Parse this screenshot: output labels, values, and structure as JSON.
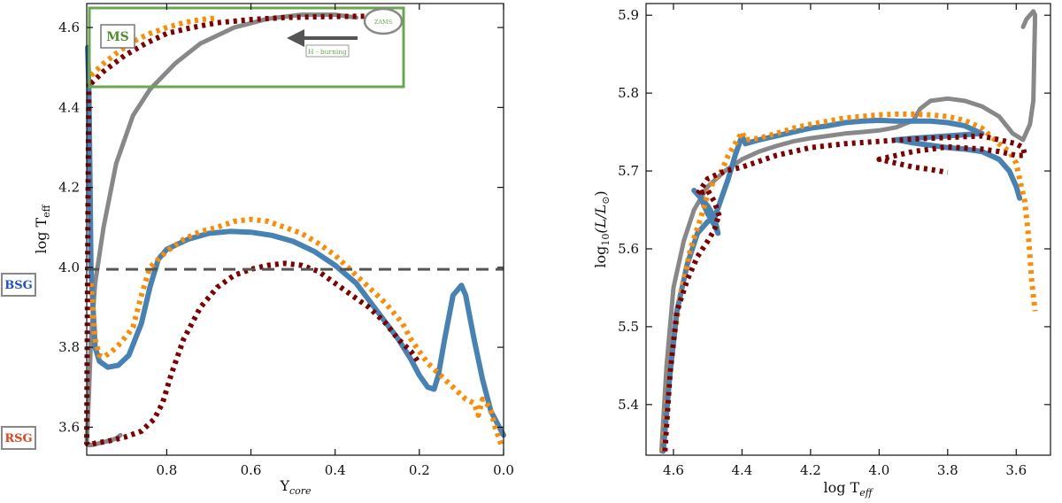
{
  "chart_data": [
    {
      "panel": "left",
      "type": "line",
      "xlabel": "Y",
      "xlabel_sub": "core",
      "ylabel": "log T",
      "ylabel_sub": "eff",
      "xlim": [
        0.99,
        0.0
      ],
      "ylim": [
        3.53,
        4.66
      ],
      "xticks": [
        0.8,
        0.6,
        0.4,
        0.2,
        0.0
      ],
      "xtick_labels": [
        "0.8",
        "0.6",
        "0.4",
        "0.2",
        "0.0"
      ],
      "yticks": [
        3.6,
        3.8,
        4.0,
        4.2,
        4.4,
        4.6
      ],
      "ytick_labels": [
        "3.6",
        "3.8",
        "4.0",
        "4.2",
        "4.4",
        "4.6"
      ],
      "hline": {
        "y": 3.995,
        "color": "#555555",
        "style": "dashed"
      },
      "annotations": {
        "ms": "MS",
        "zams": "ZAMS",
        "h_burning": "H - burning",
        "bsg": "BSG",
        "rsg": "RSG"
      },
      "colors": {
        "gray": "#888888",
        "blue": "#4682b4",
        "orange": "#ff8c00",
        "darkred": "#800000",
        "box": "#6aa84f",
        "bsg": "#1f4fd8",
        "rsg": "#e8401c"
      },
      "series": [
        {
          "name": "gray",
          "color": "#888888",
          "style": "solid",
          "x": [
            0.35,
            0.4,
            0.48,
            0.56,
            0.64,
            0.72,
            0.78,
            0.84,
            0.88,
            0.92,
            0.95,
            0.97,
            0.98,
            0.985,
            0.99,
            0.985,
            0.975,
            0.96,
            0.93,
            0.92,
            0.92,
            0.91
          ],
          "y": [
            4.625,
            4.632,
            4.632,
            4.622,
            4.6,
            4.56,
            4.51,
            4.445,
            4.38,
            4.26,
            4.1,
            3.96,
            3.82,
            3.68,
            3.56,
            3.555,
            3.556,
            3.56,
            3.568,
            3.572,
            3.572,
            3.58
          ]
        },
        {
          "name": "blue",
          "color": "#4682b4",
          "style": "solid",
          "x": [
            0.988,
            0.985,
            0.982,
            0.98,
            0.975,
            0.97,
            0.96,
            0.94,
            0.915,
            0.89,
            0.86,
            0.84,
            0.82,
            0.8,
            0.75,
            0.7,
            0.65,
            0.6,
            0.55,
            0.5,
            0.45,
            0.4,
            0.35,
            0.3,
            0.25,
            0.22,
            0.2,
            0.18,
            0.165,
            0.155,
            0.14,
            0.12,
            0.1,
            0.09,
            0.07,
            0.05,
            0.03,
            0.01,
            0.0
          ],
          "y": [
            4.55,
            4.45,
            4.2,
            4.0,
            3.9,
            3.8,
            3.765,
            3.75,
            3.755,
            3.78,
            3.86,
            3.95,
            4.02,
            4.045,
            4.07,
            4.085,
            4.09,
            4.088,
            4.08,
            4.065,
            4.04,
            4.005,
            3.96,
            3.89,
            3.82,
            3.77,
            3.73,
            3.7,
            3.695,
            3.73,
            3.82,
            3.93,
            3.955,
            3.93,
            3.82,
            3.72,
            3.64,
            3.6,
            3.58
          ]
        },
        {
          "name": "orange",
          "color": "#ff8c00",
          "style": "dotted",
          "x": [
            0.98,
            0.97,
            0.96,
            0.95,
            0.93,
            0.91,
            0.88,
            0.86,
            0.84,
            0.8,
            0.76,
            0.72,
            0.68,
            0.64,
            0.6,
            0.56,
            0.52,
            0.48,
            0.44,
            0.4,
            0.36,
            0.32,
            0.28,
            0.24,
            0.22,
            0.2,
            0.18,
            0.15,
            0.13,
            0.11,
            0.09,
            0.07,
            0.06,
            0.05,
            0.04,
            0.03,
            0.02,
            0.01,
            0.005
          ],
          "y": [
            3.96,
            3.82,
            3.78,
            3.775,
            3.79,
            3.81,
            3.85,
            3.93,
            4.0,
            4.04,
            4.07,
            4.09,
            4.1,
            4.115,
            4.12,
            4.115,
            4.1,
            4.085,
            4.06,
            4.03,
            3.99,
            3.95,
            3.91,
            3.86,
            3.82,
            3.79,
            3.76,
            3.73,
            3.71,
            3.69,
            3.67,
            3.66,
            3.63,
            3.67,
            3.66,
            3.64,
            3.6,
            3.57,
            3.555
          ]
        },
        {
          "name": "orange_ms",
          "color": "#ff8c00",
          "style": "dotted",
          "x": [
            0.98,
            0.97,
            0.95,
            0.92,
            0.88,
            0.84,
            0.8,
            0.76,
            0.72,
            0.68
          ],
          "y": [
            4.48,
            4.49,
            4.51,
            4.535,
            4.565,
            4.585,
            4.6,
            4.612,
            4.62,
            4.624
          ]
        },
        {
          "name": "darkred",
          "color": "#800000",
          "style": "dotted",
          "x": [
            0.985,
            0.988,
            0.99,
            0.985,
            0.97,
            0.94,
            0.9,
            0.86,
            0.83,
            0.81,
            0.79,
            0.76,
            0.72,
            0.68,
            0.64,
            0.6,
            0.56,
            0.52,
            0.48,
            0.44,
            0.4,
            0.36,
            0.32,
            0.28,
            0.25,
            0.22,
            0.2
          ],
          "y": [
            4.46,
            4.0,
            3.56,
            3.555,
            3.56,
            3.565,
            3.575,
            3.59,
            3.62,
            3.66,
            3.73,
            3.82,
            3.9,
            3.95,
            3.98,
            3.995,
            4.005,
            4.01,
            4.005,
            3.99,
            3.96,
            3.93,
            3.9,
            3.86,
            3.82,
            3.79,
            3.76
          ]
        },
        {
          "name": "darkred_ms",
          "color": "#800000",
          "style": "dotted",
          "x": [
            0.98,
            0.95,
            0.9,
            0.85,
            0.8,
            0.74,
            0.68,
            0.6,
            0.52,
            0.44,
            0.36,
            0.32
          ],
          "y": [
            4.46,
            4.49,
            4.53,
            4.56,
            4.585,
            4.6,
            4.612,
            4.62,
            4.625,
            4.627,
            4.628,
            4.628
          ]
        }
      ]
    },
    {
      "panel": "right",
      "type": "line",
      "xlabel": "log T",
      "xlabel_sub": "eff",
      "ylabel": "log",
      "ylabel_sub": "10",
      "ylabel_rest": "(L/L",
      "ylabel_end": ")",
      "xlim": [
        4.68,
        3.5
      ],
      "ylim": [
        5.335,
        5.915
      ],
      "xticks": [
        4.6,
        4.4,
        4.2,
        4.0,
        3.8,
        3.6
      ],
      "xtick_labels": [
        "4.6",
        "4.4",
        "4.2",
        "4.0",
        "3.8",
        "3.6"
      ],
      "yticks": [
        5.4,
        5.5,
        5.6,
        5.7,
        5.8,
        5.9
      ],
      "ytick_labels": [
        "5.4",
        "5.5",
        "5.6",
        "5.7",
        "5.8",
        "5.9"
      ],
      "series": [
        {
          "name": "gray",
          "color": "#888888",
          "style": "solid",
          "x": [
            4.635,
            4.62,
            4.6,
            4.57,
            4.54,
            4.5,
            4.45,
            4.4,
            4.35,
            4.3,
            4.25,
            4.2,
            4.15,
            4.1,
            4.05,
            4.0,
            3.95,
            3.9,
            3.88,
            3.85,
            3.8,
            3.75,
            3.7,
            3.65,
            3.61,
            3.58,
            3.56,
            3.55,
            3.545,
            3.55,
            3.57,
            3.58
          ],
          "y": [
            5.34,
            5.45,
            5.55,
            5.61,
            5.65,
            5.68,
            5.7,
            5.715,
            5.725,
            5.732,
            5.738,
            5.742,
            5.745,
            5.748,
            5.75,
            5.752,
            5.756,
            5.765,
            5.78,
            5.79,
            5.793,
            5.79,
            5.783,
            5.77,
            5.748,
            5.74,
            5.76,
            5.79,
            5.9,
            5.905,
            5.895,
            5.885
          ]
        },
        {
          "name": "blue",
          "color": "#4682b4",
          "style": "solid",
          "x": [
            4.63,
            4.61,
            4.59,
            4.56,
            4.53,
            4.5,
            4.48,
            4.46,
            4.44,
            4.42,
            4.4,
            4.39,
            4.35,
            4.3,
            4.25,
            4.2,
            4.15,
            4.1,
            4.05,
            4.0,
            3.95,
            3.9,
            3.85,
            3.8,
            3.75,
            3.7,
            3.8,
            3.9,
            3.95,
            3.9,
            3.8,
            3.75,
            3.7,
            3.65,
            3.62,
            3.6,
            3.59
          ],
          "y": [
            5.34,
            5.44,
            5.52,
            5.58,
            5.62,
            5.635,
            5.64,
            5.665,
            5.69,
            5.72,
            5.745,
            5.735,
            5.74,
            5.745,
            5.75,
            5.755,
            5.758,
            5.762,
            5.764,
            5.765,
            5.764,
            5.764,
            5.764,
            5.762,
            5.758,
            5.748,
            5.745,
            5.742,
            5.74,
            5.736,
            5.73,
            5.728,
            5.725,
            5.715,
            5.7,
            5.68,
            5.665
          ]
        },
        {
          "name": "blue_loop",
          "color": "#4682b4",
          "style": "solid",
          "x": [
            4.54,
            4.52,
            4.5,
            4.48,
            4.47,
            4.48,
            4.5,
            4.52,
            4.54
          ],
          "y": [
            5.675,
            5.665,
            5.645,
            5.63,
            5.62,
            5.64,
            5.655,
            5.665,
            5.675
          ]
        },
        {
          "name": "orange",
          "color": "#ff8c00",
          "style": "dotted",
          "x": [
            4.63,
            4.61,
            4.58,
            4.55,
            4.52,
            4.5,
            4.48,
            4.46,
            4.44,
            4.42,
            4.4,
            4.39,
            4.35,
            4.3,
            4.25,
            4.2,
            4.15,
            4.1,
            4.05,
            4.0,
            3.95,
            3.9,
            3.85,
            3.8,
            3.75,
            3.7,
            3.65,
            3.62,
            3.6,
            3.59,
            3.575,
            3.565,
            3.56,
            3.555,
            3.55,
            3.545
          ],
          "y": [
            5.34,
            5.45,
            5.54,
            5.6,
            5.64,
            5.67,
            5.69,
            5.7,
            5.72,
            5.735,
            5.75,
            5.74,
            5.742,
            5.748,
            5.755,
            5.76,
            5.764,
            5.768,
            5.77,
            5.772,
            5.773,
            5.773,
            5.772,
            5.77,
            5.765,
            5.755,
            5.735,
            5.725,
            5.71,
            5.69,
            5.66,
            5.62,
            5.59,
            5.56,
            5.54,
            5.52
          ]
        },
        {
          "name": "darkred",
          "color": "#800000",
          "style": "dotted",
          "x": [
            4.625,
            4.61,
            4.59,
            4.56,
            4.53,
            4.5,
            4.48,
            4.47,
            4.465,
            4.48,
            4.5,
            4.52,
            4.53,
            4.5,
            4.45,
            4.4,
            4.3,
            4.2,
            4.1,
            4.0,
            3.9,
            3.8,
            3.7,
            3.65,
            3.6,
            3.58,
            3.575,
            3.6,
            3.65,
            3.7,
            3.8,
            3.9,
            3.95,
            4.0,
            3.95,
            3.9,
            3.85,
            3.8
          ],
          "y": [
            5.34,
            5.44,
            5.52,
            5.56,
            5.59,
            5.61,
            5.625,
            5.64,
            5.64,
            5.66,
            5.675,
            5.672,
            5.67,
            5.69,
            5.7,
            5.705,
            5.72,
            5.73,
            5.735,
            5.738,
            5.741,
            5.743,
            5.745,
            5.74,
            5.735,
            5.73,
            5.72,
            5.72,
            5.725,
            5.728,
            5.731,
            5.725,
            5.72,
            5.715,
            5.71,
            5.705,
            5.702,
            5.698
          ]
        }
      ]
    }
  ]
}
